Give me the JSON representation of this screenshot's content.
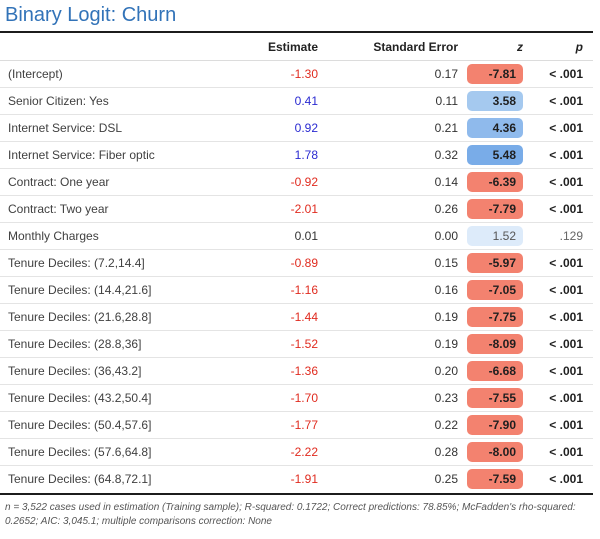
{
  "title": "Binary Logit: Churn",
  "colors": {
    "title_blue": "#3273b8",
    "estimate_negative": "#e02b1f",
    "estimate_positive": "#2a2ad1",
    "estimate_neutral": "#333333",
    "pill_red": "#f3826f",
    "pill_blue_strong": "#79ace8",
    "pill_blue_medium": "#8fbaec",
    "pill_blue_light": "#a5c9ef",
    "pill_blue_faint": "#ddebfa"
  },
  "chart_data": {
    "type": "table",
    "title": "Binary Logit: Churn",
    "columns": [
      "",
      "Estimate",
      "Standard Error",
      "z",
      "p"
    ],
    "rows": [
      {
        "label": "(Intercept)",
        "estimate": "-1.30",
        "estimate_color": "#e02b1f",
        "se": "0.17",
        "z": "-7.81",
        "z_bg": "#f3826f",
        "z_bold": true,
        "p": "< .001",
        "p_bold": true
      },
      {
        "label": "Senior Citizen: Yes",
        "estimate": "0.41",
        "estimate_color": "#2a2ad1",
        "se": "0.11",
        "z": "3.58",
        "z_bg": "#a5c9ef",
        "z_bold": true,
        "p": "< .001",
        "p_bold": true
      },
      {
        "label": "Internet Service: DSL",
        "estimate": "0.92",
        "estimate_color": "#2a2ad1",
        "se": "0.21",
        "z": "4.36",
        "z_bg": "#8fbaec",
        "z_bold": true,
        "p": "< .001",
        "p_bold": true
      },
      {
        "label": "Internet Service: Fiber optic",
        "estimate": "1.78",
        "estimate_color": "#2a2ad1",
        "se": "0.32",
        "z": "5.48",
        "z_bg": "#79ace8",
        "z_bold": true,
        "p": "< .001",
        "p_bold": true
      },
      {
        "label": "Contract: One year",
        "estimate": "-0.92",
        "estimate_color": "#e02b1f",
        "se": "0.14",
        "z": "-6.39",
        "z_bg": "#f3826f",
        "z_bold": true,
        "p": "< .001",
        "p_bold": true
      },
      {
        "label": "Contract: Two year",
        "estimate": "-2.01",
        "estimate_color": "#e02b1f",
        "se": "0.26",
        "z": "-7.79",
        "z_bg": "#f3826f",
        "z_bold": true,
        "p": "< .001",
        "p_bold": true
      },
      {
        "label": "Monthly Charges",
        "estimate": "0.01",
        "estimate_color": "#333333",
        "se": "0.00",
        "z": "1.52",
        "z_bg": "#ddebfa",
        "z_bold": false,
        "p": ".129",
        "p_bold": false
      },
      {
        "label": "Tenure Deciles: (7.2,14.4]",
        "estimate": "-0.89",
        "estimate_color": "#e02b1f",
        "se": "0.15",
        "z": "-5.97",
        "z_bg": "#f3826f",
        "z_bold": true,
        "p": "< .001",
        "p_bold": true
      },
      {
        "label": "Tenure Deciles: (14.4,21.6]",
        "estimate": "-1.16",
        "estimate_color": "#e02b1f",
        "se": "0.16",
        "z": "-7.05",
        "z_bg": "#f3826f",
        "z_bold": true,
        "p": "< .001",
        "p_bold": true
      },
      {
        "label": "Tenure Deciles: (21.6,28.8]",
        "estimate": "-1.44",
        "estimate_color": "#e02b1f",
        "se": "0.19",
        "z": "-7.75",
        "z_bg": "#f3826f",
        "z_bold": true,
        "p": "< .001",
        "p_bold": true
      },
      {
        "label": "Tenure Deciles: (28.8,36]",
        "estimate": "-1.52",
        "estimate_color": "#e02b1f",
        "se": "0.19",
        "z": "-8.09",
        "z_bg": "#f3826f",
        "z_bold": true,
        "p": "< .001",
        "p_bold": true
      },
      {
        "label": "Tenure Deciles: (36,43.2]",
        "estimate": "-1.36",
        "estimate_color": "#e02b1f",
        "se": "0.20",
        "z": "-6.68",
        "z_bg": "#f3826f",
        "z_bold": true,
        "p": "< .001",
        "p_bold": true
      },
      {
        "label": "Tenure Deciles: (43.2,50.4]",
        "estimate": "-1.70",
        "estimate_color": "#e02b1f",
        "se": "0.23",
        "z": "-7.55",
        "z_bg": "#f3826f",
        "z_bold": true,
        "p": "< .001",
        "p_bold": true
      },
      {
        "label": "Tenure Deciles: (50.4,57.6]",
        "estimate": "-1.77",
        "estimate_color": "#e02b1f",
        "se": "0.22",
        "z": "-7.90",
        "z_bg": "#f3826f",
        "z_bold": true,
        "p": "< .001",
        "p_bold": true
      },
      {
        "label": "Tenure Deciles: (57.6,64.8]",
        "estimate": "-2.22",
        "estimate_color": "#e02b1f",
        "se": "0.28",
        "z": "-8.00",
        "z_bg": "#f3826f",
        "z_bold": true,
        "p": "< .001",
        "p_bold": true
      },
      {
        "label": "Tenure Deciles: (64.8,72.1]",
        "estimate": "-1.91",
        "estimate_color": "#e02b1f",
        "se": "0.25",
        "z": "-7.59",
        "z_bg": "#f3826f",
        "z_bold": true,
        "p": "< .001",
        "p_bold": true
      }
    ],
    "footnote": "n = 3,522 cases used in estimation (Training sample); R-squared: 0.1722; Correct predictions: 78.85%; McFadden's rho-squared: 0.2652; AIC: 3,045.1; multiple comparisons correction: None"
  }
}
